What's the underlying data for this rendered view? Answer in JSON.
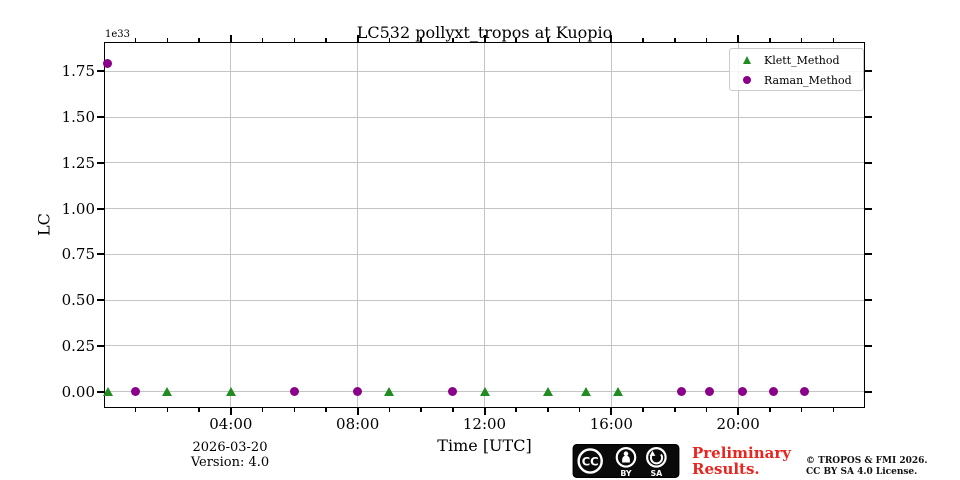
{
  "title": "LC532 pollyxt_tropos at Kuopio",
  "axes": {
    "ylabel": "LC",
    "xlabel": "Time [UTC]",
    "offset_text": "1e33"
  },
  "legend": {
    "items": [
      {
        "label": "Klett_Method",
        "marker": "triangle",
        "color": "#228B22"
      },
      {
        "label": "Raman_Method",
        "marker": "circle",
        "color": "#8B008B"
      }
    ]
  },
  "footer": {
    "date": "2026-03-20",
    "version": "Version: 4.0",
    "preliminary_line1": "Preliminary",
    "preliminary_line2": "Results.",
    "preliminary_color": "#e8251f",
    "copyright_line1": "© TROPOS & FMI 2026.",
    "copyright_line2": "CC BY SA 4.0 License.",
    "cc_badge": {
      "cc": "CC",
      "by": "BY",
      "sa": "SA"
    }
  },
  "chart_data": {
    "type": "scatter",
    "title": "LC532 pollyxt_tropos at Kuopio",
    "xlabel": "Time [UTC]",
    "ylabel": "LC",
    "y_offset_factor": "1e33",
    "grid": true,
    "grid_color": "#c4c4c4",
    "xlim_hours": [
      0,
      24
    ],
    "ylim": [
      -0.09,
      1.91
    ],
    "x_major_ticks": [
      {
        "hour": 4,
        "label": "04:00"
      },
      {
        "hour": 8,
        "label": "08:00"
      },
      {
        "hour": 12,
        "label": "12:00"
      },
      {
        "hour": 16,
        "label": "16:00"
      },
      {
        "hour": 20,
        "label": "20:00"
      }
    ],
    "x_minor_tick_step_hours": 1,
    "y_ticks": [
      {
        "value": 0.0,
        "label": "0.00"
      },
      {
        "value": 0.25,
        "label": "0.25"
      },
      {
        "value": 0.5,
        "label": "0.50"
      },
      {
        "value": 0.75,
        "label": "0.75"
      },
      {
        "value": 1.0,
        "label": "1.00"
      },
      {
        "value": 1.25,
        "label": "1.25"
      },
      {
        "value": 1.5,
        "label": "1.50"
      },
      {
        "value": 1.75,
        "label": "1.75"
      }
    ],
    "series": [
      {
        "name": "Klett_Method",
        "marker": "triangle",
        "color": "#228B22",
        "points_hour_value": [
          [
            0.12,
            0
          ],
          [
            2.0,
            0
          ],
          [
            4.0,
            0
          ],
          [
            9.0,
            0
          ],
          [
            12.0,
            0
          ],
          [
            14.0,
            0
          ],
          [
            15.2,
            0
          ],
          [
            16.2,
            0
          ]
        ]
      },
      {
        "name": "Raman_Method",
        "marker": "circle",
        "color": "#8B008B",
        "points_hour_value": [
          [
            0.1,
            1.79
          ],
          [
            1.0,
            0
          ],
          [
            6.0,
            0
          ],
          [
            8.0,
            0
          ],
          [
            11.0,
            0
          ],
          [
            18.2,
            0
          ],
          [
            19.1,
            0
          ],
          [
            20.15,
            0
          ],
          [
            21.1,
            0
          ],
          [
            22.1,
            0
          ]
        ]
      }
    ]
  }
}
